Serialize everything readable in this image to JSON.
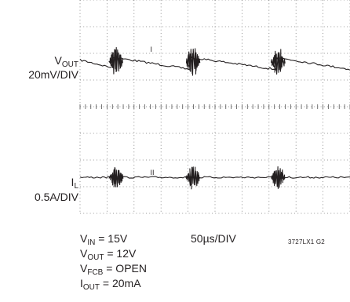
{
  "chart_data": {
    "type": "line",
    "title": "",
    "grid": true,
    "divisions": {
      "x": 10,
      "y": 8
    },
    "channels": [
      {
        "label_main": "V",
        "label_sub": "OUT",
        "scale": "20mV/DIV",
        "baseline_div": 2.3,
        "segments": [
          {
            "start_div": 0.0,
            "end_div": 1.25,
            "start_offset_div": 0.05,
            "end_offset_div": -0.25
          },
          {
            "start_div": 1.25,
            "end_div": 4.1,
            "start_offset_div": 0.15,
            "end_offset_div": -0.3
          },
          {
            "start_div": 4.1,
            "end_div": 7.25,
            "start_offset_div": 0.15,
            "end_offset_div": -0.3
          },
          {
            "start_div": 7.25,
            "end_div": 10.0,
            "start_offset_div": 0.15,
            "end_offset_div": -0.3
          }
        ],
        "bursts_div": [
          1.25,
          4.1,
          7.25
        ],
        "burst_amp_div": 0.55,
        "marker_div": 2.6,
        "marker_char": "I"
      },
      {
        "label_main": "I",
        "label_sub": "L",
        "scale": "0.5A/DIV",
        "baseline_div": 6.65,
        "bursts_div": [
          1.25,
          4.1,
          7.25
        ],
        "burst_amp_div": 0.45,
        "marker_div": 2.6,
        "marker_char": "II"
      }
    ],
    "conditions": [
      {
        "main": "V",
        "sub": "IN",
        "rest": " = 15V"
      },
      {
        "main": "V",
        "sub": "OUT",
        "rest": " = 12V"
      },
      {
        "main": "V",
        "sub": "FCB",
        "rest": " = OPEN"
      },
      {
        "main": "I",
        "sub": "OUT",
        "rest": " = 20mA"
      }
    ],
    "timebase": "50µs/DIV",
    "figure_id": "3727LX1 G2"
  }
}
